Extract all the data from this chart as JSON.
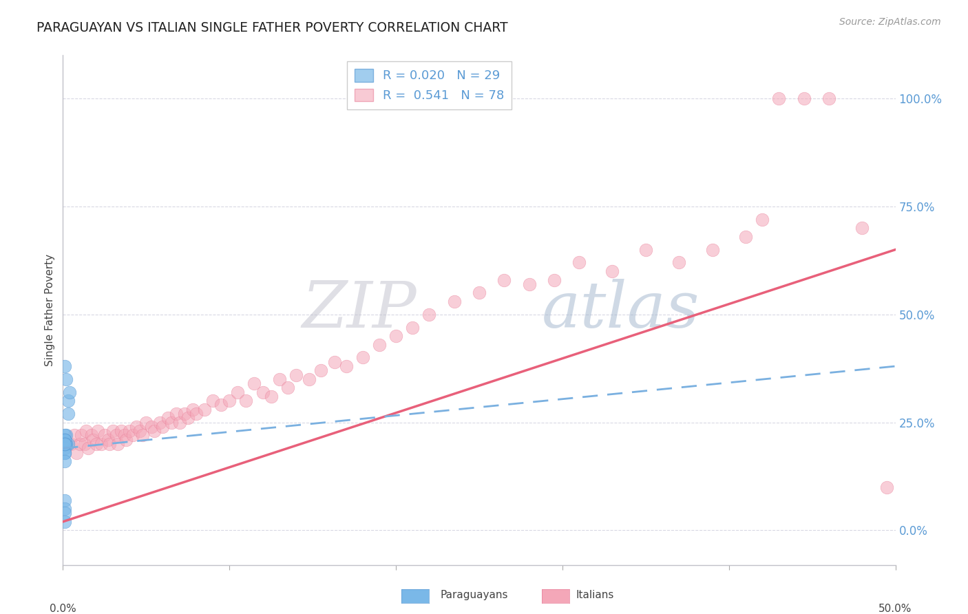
{
  "title": "PARAGUAYAN VS ITALIAN SINGLE FATHER POVERTY CORRELATION CHART",
  "source_text": "Source: ZipAtlas.com",
  "ylabel": "Single Father Poverty",
  "xlim": [
    0.0,
    0.5
  ],
  "ylim": [
    -0.08,
    1.1
  ],
  "right_yticks": [
    0.0,
    0.25,
    0.5,
    0.75,
    1.0
  ],
  "right_yticklabels": [
    "0.0%",
    "25.0%",
    "50.0%",
    "75.0%",
    "100.0%"
  ],
  "paraguayan_color": "#7ab8e8",
  "paraguayan_edge": "#5b9bd5",
  "italian_color": "#f4a7b8",
  "italian_edge": "#e8809a",
  "paraguayan_R": 0.02,
  "paraguayan_N": 29,
  "italian_R": 0.541,
  "italian_N": 78,
  "watermark": "ZIPatlas",
  "watermark_zip_color": "#c8c8d8",
  "watermark_atlas_color": "#a8b8d0",
  "trend_italian_color": "#e8607a",
  "trend_par_color": "#7ab0e0",
  "paraguayan_x": [
    0.002,
    0.003,
    0.002,
    0.004,
    0.003,
    0.002,
    0.001,
    0.001,
    0.002,
    0.003,
    0.001,
    0.001,
    0.002,
    0.001,
    0.001,
    0.001,
    0.001,
    0.001,
    0.001,
    0.001,
    0.001,
    0.001,
    0.001,
    0.001,
    0.001,
    0.001,
    0.001,
    0.001,
    0.001
  ],
  "paraguayan_y": [
    0.22,
    0.3,
    0.35,
    0.32,
    0.27,
    0.2,
    0.22,
    0.21,
    0.2,
    0.2,
    0.21,
    0.2,
    0.2,
    0.2,
    0.19,
    0.2,
    0.18,
    0.18,
    0.2,
    0.21,
    0.2,
    0.2,
    0.2,
    0.16,
    0.07,
    0.05,
    0.04,
    0.02,
    0.38
  ],
  "italian_x": [
    0.005,
    0.007,
    0.008,
    0.01,
    0.011,
    0.013,
    0.014,
    0.015,
    0.017,
    0.018,
    0.02,
    0.021,
    0.023,
    0.025,
    0.027,
    0.028,
    0.03,
    0.032,
    0.033,
    0.035,
    0.037,
    0.038,
    0.04,
    0.042,
    0.044,
    0.046,
    0.048,
    0.05,
    0.053,
    0.055,
    0.058,
    0.06,
    0.063,
    0.065,
    0.068,
    0.07,
    0.073,
    0.075,
    0.078,
    0.08,
    0.085,
    0.09,
    0.095,
    0.1,
    0.105,
    0.11,
    0.115,
    0.12,
    0.125,
    0.13,
    0.135,
    0.14,
    0.148,
    0.155,
    0.163,
    0.17,
    0.18,
    0.19,
    0.2,
    0.21,
    0.22,
    0.235,
    0.25,
    0.265,
    0.28,
    0.295,
    0.31,
    0.33,
    0.35,
    0.37,
    0.39,
    0.41,
    0.42,
    0.43,
    0.445,
    0.46,
    0.48,
    0.495
  ],
  "italian_y": [
    0.2,
    0.22,
    0.18,
    0.2,
    0.22,
    0.2,
    0.23,
    0.19,
    0.22,
    0.21,
    0.2,
    0.23,
    0.2,
    0.22,
    0.21,
    0.2,
    0.23,
    0.22,
    0.2,
    0.23,
    0.22,
    0.21,
    0.23,
    0.22,
    0.24,
    0.23,
    0.22,
    0.25,
    0.24,
    0.23,
    0.25,
    0.24,
    0.26,
    0.25,
    0.27,
    0.25,
    0.27,
    0.26,
    0.28,
    0.27,
    0.28,
    0.3,
    0.29,
    0.3,
    0.32,
    0.3,
    0.34,
    0.32,
    0.31,
    0.35,
    0.33,
    0.36,
    0.35,
    0.37,
    0.39,
    0.38,
    0.4,
    0.43,
    0.45,
    0.47,
    0.5,
    0.53,
    0.55,
    0.58,
    0.57,
    0.58,
    0.62,
    0.6,
    0.65,
    0.62,
    0.65,
    0.68,
    0.72,
    1.0,
    1.0,
    1.0,
    0.7,
    0.1
  ]
}
